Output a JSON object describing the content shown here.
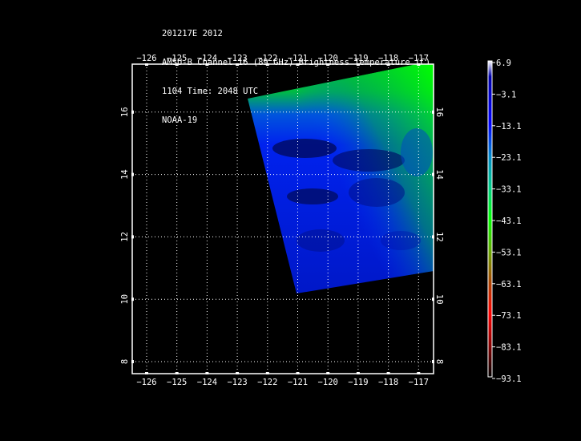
{
  "header": {
    "line1": "201217E 2012",
    "line2": "AMSU-B Channel 16 (89 GHz) Brightness Temperature (C)",
    "line3": "1104 Time: 2048 UTC",
    "line4": "NOAA-19"
  },
  "map": {
    "lon_labels": [
      "−126",
      "−125",
      "−124",
      "−123",
      "−122",
      "−121",
      "−120",
      "−119",
      "−118",
      "−117"
    ],
    "lat_labels": [
      "8",
      "10",
      "12",
      "14",
      "16"
    ],
    "grid": "dotted"
  },
  "colorbar": {
    "labels": [
      "6.9",
      "−3.1",
      "−13.1",
      "−23.1",
      "−33.1",
      "−43.1",
      "−53.1",
      "−63.1",
      "−73.1",
      "−83.1",
      "−93.1"
    ],
    "colors": [
      "#ffffff",
      "#0000aa",
      "#0000ff",
      "#0088cc",
      "#00cc88",
      "#00ff00",
      "#66aa00",
      "#aa4400",
      "#ff0000",
      "#880000",
      "#000000"
    ]
  }
}
